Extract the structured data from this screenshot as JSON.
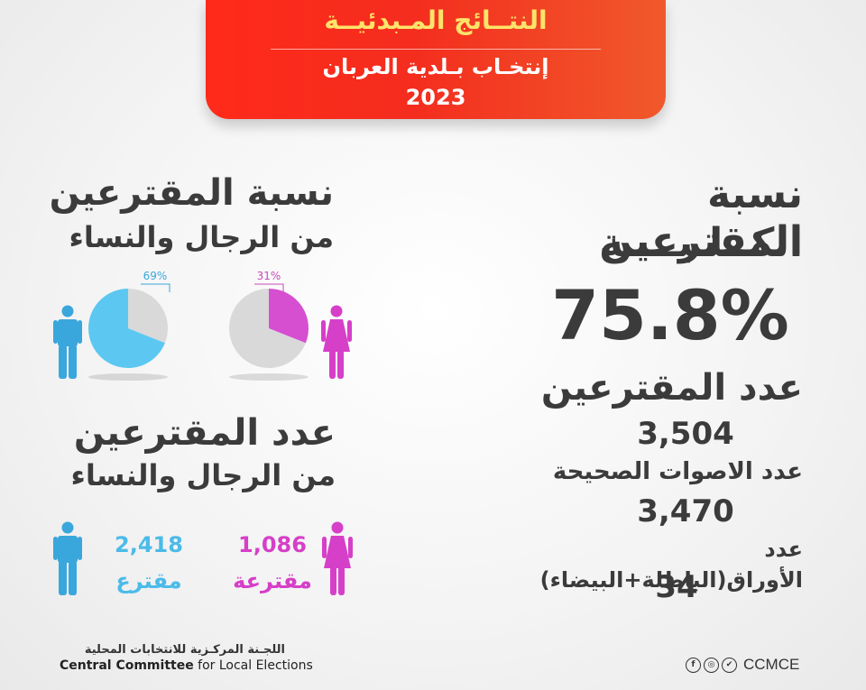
{
  "header": {
    "title": "النتــائج المـبدئيــة",
    "subtitle": "إنتخـاب بـلدية العربان",
    "year": "2023"
  },
  "total": {
    "heading_line1": "نسبة المقترعين",
    "heading_line2": "الكــلـيــــة",
    "percent": "75.8%",
    "voters_label": "عدد المقترعين",
    "voters_value": "3,504",
    "valid_label": "عدد الاصوات الصحيحة",
    "valid_value": "3,470",
    "invalid_label": "عدد الأوراق(الباطلة+البيضاء)",
    "invalid_value": "34"
  },
  "gender_share": {
    "heading_line1": "نسبة المقترعين",
    "heading_line2": "من الرجال والنساء"
  },
  "gender_count": {
    "heading_line1": "عدد المقترعين",
    "heading_line2": "من الرجال والنساء",
    "men_value": "2,418",
    "men_label": "مقترع",
    "women_value": "1,086",
    "women_label": "مقترعة"
  },
  "chart_data": [
    {
      "type": "pie",
      "categories": [
        "الرجال",
        "النساء"
      ],
      "values": [
        69,
        31
      ],
      "data_labels": [
        "69%",
        "31%"
      ],
      "colors": {
        "men": "#5cc8f2",
        "women": "#d64fd1",
        "remainder": "#d9d9d9"
      }
    }
  ],
  "footer": {
    "org_ar": "اللجـنة المركـزية للانتخابات المحلية",
    "org_en_bold": "Central Committee",
    "org_en_rest": " for Local Elections",
    "handle": "CCMCE",
    "icons": [
      "facebook-icon",
      "instagram-icon",
      "twitter-icon"
    ]
  },
  "colors": {
    "banner_red": "#f42d1e",
    "banner_gold": "#fde36a",
    "men_blue": "#3aa7dc",
    "women_pink": "#d63fc8",
    "text_dark": "#3b3b3b"
  }
}
